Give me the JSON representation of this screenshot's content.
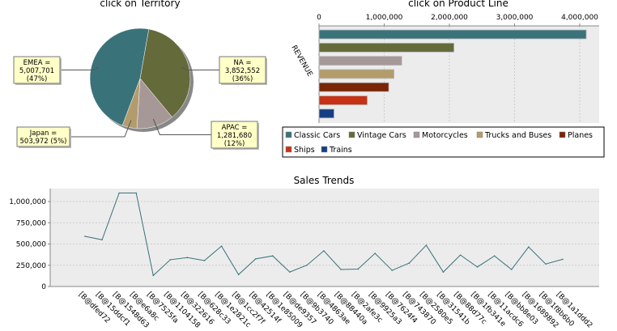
{
  "chart_data": [
    {
      "type": "pie",
      "title": "click on Territory",
      "slices": [
        {
          "label": "EMEA",
          "value": 5007701,
          "percent": "47%",
          "color": "#3a727a",
          "text": [
            "EMEA =",
            "5,007,701",
            "(47%)"
          ]
        },
        {
          "label": "NA",
          "value": 3852552,
          "percent": "36%",
          "color": "#646a3a",
          "text": [
            "NA =",
            "3,852,552",
            "(36%)"
          ]
        },
        {
          "label": "APAC",
          "value": 1281680,
          "percent": "12%",
          "color": "#a79898",
          "text": [
            "APAC =",
            "1,281,680",
            "(12%)"
          ]
        },
        {
          "label": "Japan",
          "value": 503972,
          "percent": "5%",
          "color": "#b39c6c",
          "text": [
            "Japan =",
            "503,972 (5%)"
          ]
        }
      ]
    },
    {
      "type": "bar",
      "orientation": "horizontal",
      "title": "click on Product Line",
      "ylabel": "REVENUE",
      "xlim": [
        0,
        4300000
      ],
      "ticks": [
        0,
        1000000,
        2000000,
        3000000,
        4000000
      ],
      "tick_labels": [
        "0",
        "1,000,000",
        "2,000,000",
        "3,000,000",
        "4,000,000"
      ],
      "grid": true,
      "legend": "bottom",
      "series": [
        {
          "name": "Classic Cars",
          "value": 4100000,
          "color": "#3a727a"
        },
        {
          "name": "Vintage Cars",
          "value": 2070000,
          "color": "#646a3a"
        },
        {
          "name": "Motorcycles",
          "value": 1270000,
          "color": "#a79898"
        },
        {
          "name": "Trucks and Buses",
          "value": 1150000,
          "color": "#b39c6c"
        },
        {
          "name": "Planes",
          "value": 1070000,
          "color": "#7a2408"
        },
        {
          "name": "Ships",
          "value": 740000,
          "color": "#c83214"
        },
        {
          "name": "Trains",
          "value": 230000,
          "color": "#163e84"
        }
      ]
    },
    {
      "type": "line",
      "title": "Sales Trends",
      "ylim": [
        0,
        1150000
      ],
      "yticks": [
        0,
        250000,
        500000,
        750000,
        1000000
      ],
      "ytick_labels": [
        "0",
        "250,000",
        "500,000",
        "750,000",
        "1,000,000"
      ],
      "grid": true,
      "color": "#3a727a",
      "categories": [
        "[B@dfed72",
        "[B@15ddcf1",
        "[B@1548d63",
        "[B@e6a8c",
        "[B@7525fa",
        "[B@1104158",
        "[B@322616",
        "[B@628c33",
        "[B@1e2821c",
        "[B@1cc2f7f",
        "[B@42514f",
        "[B@1e85009",
        "[B@de9357",
        "[B@9b3740",
        "[B@4863ae",
        "[B@88440a",
        "[B@2afe3c",
        "[B@9925a3",
        "[B@7624f4",
        "[B@743870",
        "[B@2580e5",
        "[B@31541b",
        "[B@88d77c",
        "[B@1fb341e",
        "[B@11acdc6",
        "[B@bb8e03",
        "[B@1689892",
        "[B@1f8b6b0",
        "[B@1a1ddd2"
      ],
      "values": [
        590000,
        550000,
        1100000,
        1100000,
        130000,
        315000,
        340000,
        305000,
        475000,
        140000,
        325000,
        360000,
        170000,
        250000,
        420000,
        200000,
        205000,
        390000,
        190000,
        275000,
        485000,
        170000,
        370000,
        230000,
        360000,
        200000,
        465000,
        265000,
        320000
      ]
    }
  ]
}
